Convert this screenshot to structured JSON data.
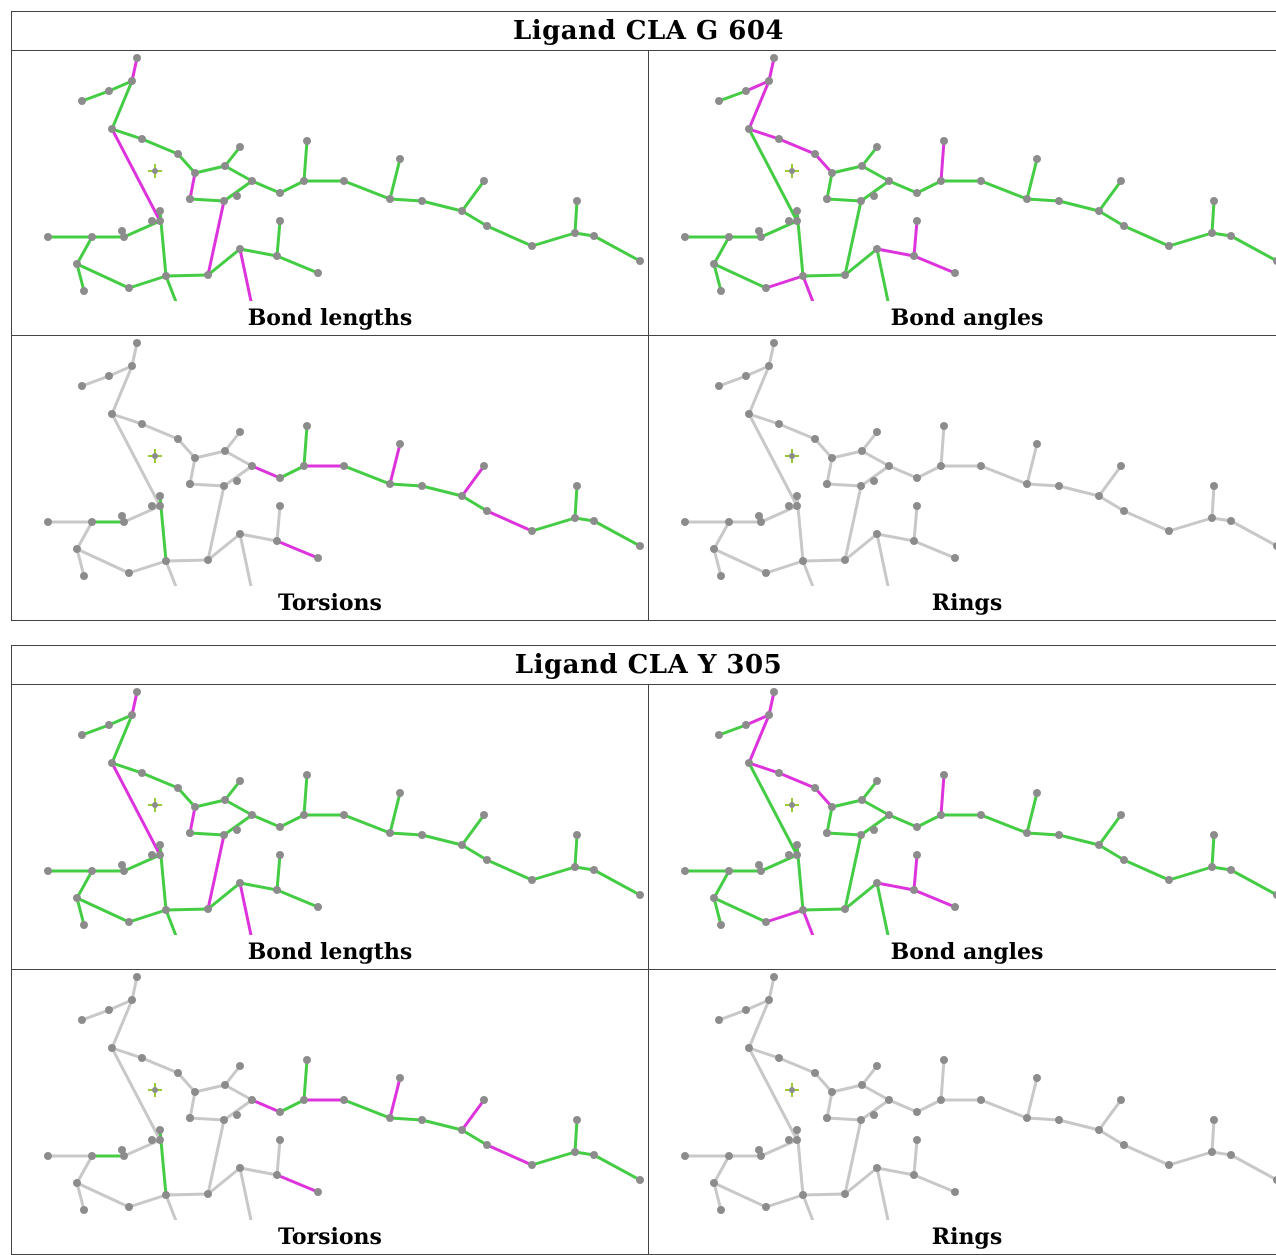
{
  "tables": [
    {
      "title": "Ligand CLA G 604",
      "panels": [
        {
          "caption": "Bond lengths",
          "mode": "lengths"
        },
        {
          "caption": "Bond angles",
          "mode": "angles"
        },
        {
          "caption": "Torsions",
          "mode": "torsions"
        },
        {
          "caption": "Rings",
          "mode": "rings"
        }
      ]
    },
    {
      "title": "Ligand CLA Y 305",
      "panels": [
        {
          "caption": "Bond lengths",
          "mode": "lengths"
        },
        {
          "caption": "Bond angles",
          "mode": "angles"
        },
        {
          "caption": "Torsions",
          "mode": "torsions"
        },
        {
          "caption": "Rings",
          "mode": "rings"
        }
      ]
    }
  ],
  "colors": {
    "good": "#44cc44",
    "outlier": "#dd33dd",
    "neutral": "#c8c8c8",
    "atom": "#8c8c8c",
    "metal": "#99cc33"
  }
}
